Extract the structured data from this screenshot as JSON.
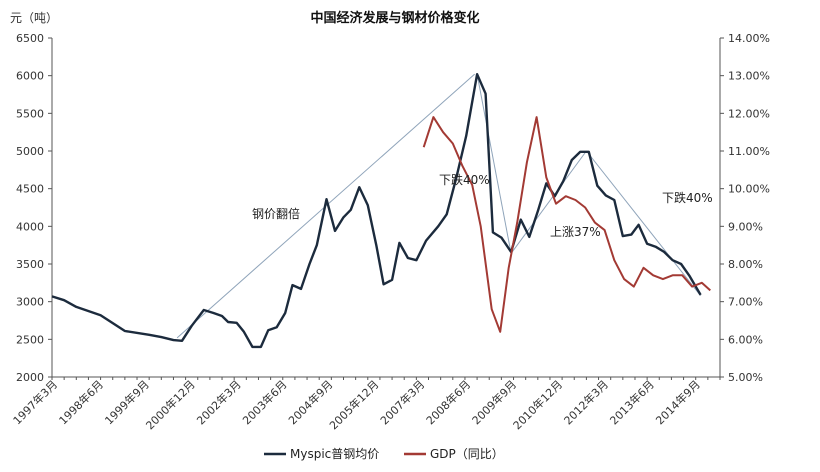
{
  "chart_data": {
    "type": "line",
    "title": "中国经济发展与钢材价格变化",
    "y_left_unit_label": "元（吨）",
    "y_left": {
      "ticks": [
        2000,
        2500,
        3000,
        3500,
        4000,
        4500,
        5000,
        5500,
        6000,
        6500
      ],
      "lim": [
        2000,
        6500
      ]
    },
    "y_right": {
      "ticks": [
        "5.00%",
        "6.00%",
        "7.00%",
        "8.00%",
        "9.00%",
        "10.00%",
        "11.00%",
        "12.00%",
        "13.00%",
        "14.00%"
      ],
      "lim": [
        5.0,
        14.0
      ]
    },
    "x_tick_labels": [
      "1997年3月",
      "1998年6月",
      "1999年9月",
      "2000年12月",
      "2002年3月",
      "2003年6月",
      "2004年9月",
      "2005年12月",
      "2007年3月",
      "2008年6月",
      "2009年9月",
      "2010年12月",
      "2012年3月",
      "2013年6月",
      "2014年9月"
    ],
    "legend": {
      "position": "bottom",
      "entries": [
        "Myspic普钢均价",
        "GDP（同比）"
      ]
    },
    "colors": {
      "steel": "#1c2b3d",
      "gdp": "#a33a34",
      "trend": "#8fa4ba",
      "axis": "#555555"
    },
    "series": [
      {
        "name": "Myspic普钢均价",
        "axis": "left",
        "points": [
          [
            0,
            3070
          ],
          [
            1,
            3020
          ],
          [
            2,
            2930
          ],
          [
            4,
            2820
          ],
          [
            6,
            2610
          ],
          [
            8,
            2560
          ],
          [
            9,
            2530
          ],
          [
            10,
            2490
          ],
          [
            10.7,
            2480
          ],
          [
            11.5,
            2680
          ],
          [
            12.5,
            2890
          ],
          [
            13.3,
            2850
          ],
          [
            14,
            2810
          ],
          [
            14.5,
            2730
          ],
          [
            15.2,
            2720
          ],
          [
            15.8,
            2600
          ],
          [
            16.5,
            2400
          ],
          [
            17.2,
            2400
          ],
          [
            17.8,
            2620
          ],
          [
            18.5,
            2660
          ],
          [
            19.2,
            2850
          ],
          [
            19.8,
            3220
          ],
          [
            20.5,
            3170
          ],
          [
            21.2,
            3500
          ],
          [
            21.8,
            3750
          ],
          [
            22.6,
            4360
          ],
          [
            23.3,
            3940
          ],
          [
            24,
            4120
          ],
          [
            24.6,
            4220
          ],
          [
            25.3,
            4520
          ],
          [
            26,
            4280
          ],
          [
            26.7,
            3750
          ],
          [
            27.3,
            3230
          ],
          [
            28,
            3290
          ],
          [
            28.6,
            3780
          ],
          [
            29.3,
            3580
          ],
          [
            30,
            3550
          ],
          [
            30.8,
            3810
          ],
          [
            31.8,
            4000
          ],
          [
            32.5,
            4160
          ],
          [
            33.3,
            4650
          ],
          [
            34.1,
            5200
          ],
          [
            35,
            6020
          ],
          [
            35.7,
            5760
          ],
          [
            36.3,
            3920
          ],
          [
            37,
            3850
          ],
          [
            37.8,
            3660
          ],
          [
            38.6,
            4090
          ],
          [
            39.3,
            3860
          ],
          [
            40,
            4200
          ],
          [
            40.7,
            4570
          ],
          [
            41.4,
            4400
          ],
          [
            42.1,
            4600
          ],
          [
            42.8,
            4880
          ],
          [
            43.5,
            4990
          ],
          [
            44.2,
            4990
          ],
          [
            44.9,
            4540
          ],
          [
            45.6,
            4410
          ],
          [
            46.3,
            4350
          ],
          [
            47,
            3870
          ],
          [
            47.7,
            3890
          ],
          [
            48.3,
            4020
          ],
          [
            49,
            3770
          ],
          [
            49.7,
            3730
          ],
          [
            50.4,
            3660
          ],
          [
            51.1,
            3550
          ],
          [
            51.8,
            3500
          ],
          [
            52.5,
            3340
          ],
          [
            53.4,
            3090
          ]
        ]
      },
      {
        "name": "GDP（同比）",
        "axis": "right",
        "points": [
          [
            30.6,
            11.1
          ],
          [
            31.4,
            11.9
          ],
          [
            32.2,
            11.5
          ],
          [
            33,
            11.2
          ],
          [
            33.8,
            10.6
          ],
          [
            34.6,
            10.1
          ],
          [
            35.3,
            9.0
          ],
          [
            36.2,
            6.8
          ],
          [
            36.9,
            6.2
          ],
          [
            37.6,
            7.9
          ],
          [
            38.3,
            9.1
          ],
          [
            39.1,
            10.7
          ],
          [
            39.9,
            11.9
          ],
          [
            40.7,
            10.3
          ],
          [
            41.5,
            9.6
          ],
          [
            42.3,
            9.8
          ],
          [
            43.1,
            9.7
          ],
          [
            43.9,
            9.5
          ],
          [
            44.7,
            9.1
          ],
          [
            45.5,
            8.9
          ],
          [
            46.3,
            8.1
          ],
          [
            47.1,
            7.6
          ],
          [
            47.9,
            7.4
          ],
          [
            48.7,
            7.9
          ],
          [
            49.5,
            7.7
          ],
          [
            50.3,
            7.6
          ],
          [
            51.1,
            7.7
          ],
          [
            51.9,
            7.7
          ],
          [
            52.7,
            7.4
          ],
          [
            53.5,
            7.5
          ],
          [
            54.2,
            7.3
          ]
        ]
      }
    ],
    "annotations": [
      {
        "text": "钢价翻倍"
      },
      {
        "text": "下跌40%"
      },
      {
        "text": "上涨37%"
      },
      {
        "text": "下跌40%"
      }
    ]
  }
}
